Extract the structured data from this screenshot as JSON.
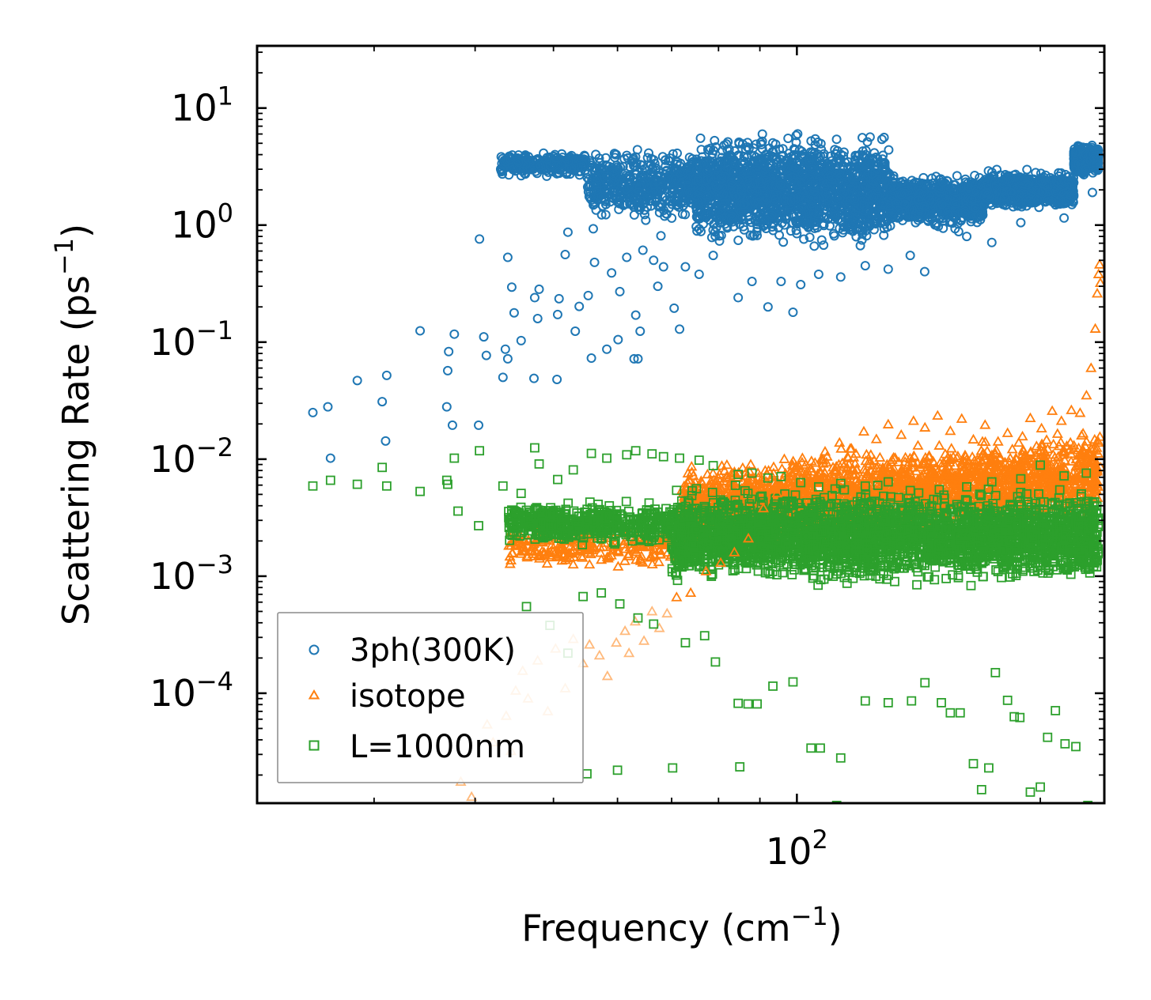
{
  "chart_data": {
    "type": "scatter",
    "xscale": "log",
    "yscale": "log",
    "xlabel": "Frequency (cm",
    "xlabel_sup": "−1",
    "xlabel_end": ")",
    "ylabel": "Scattering Rate (ps",
    "ylabel_sup": "−1",
    "ylabel_end": ")",
    "xlim": [
      21.5,
      240
    ],
    "ylim": [
      1.15e-05,
      34
    ],
    "x_ticks": [
      {
        "value": 100,
        "base": "10",
        "exp": "2"
      }
    ],
    "y_ticks": [
      {
        "value": 10,
        "base": "10",
        "exp": "1"
      },
      {
        "value": 1,
        "base": "10",
        "exp": "0"
      },
      {
        "value": 0.1,
        "base": "10",
        "exp": "−1"
      },
      {
        "value": 0.01,
        "base": "10",
        "exp": "−2"
      },
      {
        "value": 0.001,
        "base": "10",
        "exp": "−3"
      },
      {
        "value": 0.0001,
        "base": "10",
        "exp": "−4"
      }
    ],
    "legend_position": "lower-left",
    "series": [
      {
        "name": "3ph(300K)",
        "color": "#1f77b4",
        "marker": "circle",
        "points": [
          [
            25.2,
            0.025
          ],
          [
            26.3,
            0.028
          ],
          [
            26.5,
            0.0102
          ],
          [
            28.6,
            0.047
          ],
          [
            30.7,
            0.031
          ],
          [
            31.1,
            0.052
          ],
          [
            31.0,
            0.0143
          ],
          [
            34.2,
            0.125
          ],
          [
            36.9,
            0.028
          ],
          [
            37.0,
            0.057
          ],
          [
            37.1,
            0.083
          ],
          [
            37.7,
            0.117
          ],
          [
            37.5,
            0.0195
          ],
          [
            40.4,
            0.0195
          ],
          [
            40.5,
            0.76
          ],
          [
            41.0,
            0.111
          ],
          [
            41.3,
            0.077
          ],
          [
            43.3,
            0.05
          ],
          [
            43.6,
            0.087
          ],
          [
            43.9,
            0.072
          ],
          [
            43.9,
            0.53
          ],
          [
            44.4,
            0.295
          ],
          [
            44.7,
            0.178
          ],
          [
            45.6,
            0.103
          ],
          [
            47.3,
            0.049
          ],
          [
            47.4,
            0.24
          ],
          [
            47.8,
            0.159
          ],
          [
            48.0,
            0.283
          ],
          [
            50.5,
            0.048
          ],
          [
            50.6,
            0.172
          ],
          [
            50.8,
            0.235
          ],
          [
            51.7,
            0.56
          ],
          [
            52.1,
            0.87
          ],
          [
            53.2,
            0.124
          ],
          [
            53.8,
            0.202
          ],
          [
            55.2,
            0.25
          ],
          [
            55.7,
            0.073
          ],
          [
            56.0,
            0.93
          ],
          [
            56.2,
            0.48
          ],
          [
            58.2,
            0.087
          ],
          [
            59.0,
            0.39
          ],
          [
            60.1,
            0.105
          ],
          [
            60.4,
            0.27
          ],
          [
            61.6,
            0.53
          ],
          [
            62.9,
            0.072
          ],
          [
            63.6,
            0.072
          ],
          [
            63.2,
            0.17
          ],
          [
            64.0,
            0.124
          ],
          [
            64.5,
            0.61
          ],
          [
            66.5,
            0.5
          ],
          [
            67.3,
            0.3
          ],
          [
            67.9,
            0.81
          ],
          [
            68.4,
            0.44
          ],
          [
            70.5,
            0.195
          ],
          [
            71.6,
            0.129
          ],
          [
            72.8,
            0.44
          ],
          [
            75.7,
            0.38
          ],
          [
            78.8,
            0.55
          ],
          [
            84.6,
            0.24
          ],
          [
            88.0,
            0.33
          ],
          [
            92.1,
            0.2
          ],
          [
            95.6,
            0.33
          ],
          [
            98.9,
            0.18
          ],
          [
            101.1,
            0.31
          ],
          [
            106.4,
            0.38
          ],
          [
            113.3,
            0.36
          ],
          [
            121.5,
            0.45
          ],
          [
            129.7,
            0.42
          ],
          [
            138.1,
            0.55
          ],
          [
            143.9,
            0.4
          ],
          [
            158.5,
            0.88
          ],
          [
            162.2,
            0.8
          ],
          [
            174.2,
            0.71
          ],
          [
            189.2,
            1.05
          ],
          [
            214.0,
            1.15
          ],
          [
            232.0,
            1.9
          ]
        ]
      },
      {
        "name": "isotope",
        "color": "#ff7f0e",
        "marker": "triangle",
        "points": [
          [
            38.4,
            1.75e-05
          ],
          [
            39.6,
            1.3e-05
          ],
          [
            41.4,
            5.4e-05
          ],
          [
            42.1,
            3.8e-05
          ],
          [
            43.7,
            6.4e-05
          ],
          [
            44.3,
            3.2e-05
          ],
          [
            44.9,
            0.000105
          ],
          [
            45.8,
            0.000155
          ],
          [
            46.5,
            9e-05
          ],
          [
            47.8,
            0.00019
          ],
          [
            49.2,
            7e-05
          ],
          [
            50.3,
            0.00024
          ],
          [
            51.7,
            0.00011
          ],
          [
            52.9,
            0.00029
          ],
          [
            54.4,
            0.00018
          ],
          [
            55.4,
            0.00026
          ],
          [
            57.0,
            0.00021
          ],
          [
            58.3,
            0.00014
          ],
          [
            59.8,
            0.00027
          ],
          [
            61.3,
            0.00034
          ],
          [
            62.0,
            0.00022
          ],
          [
            63.1,
            0.00041
          ],
          [
            64.7,
            0.00028
          ],
          [
            66.2,
            0.0005
          ],
          [
            67.6,
            0.00036
          ],
          [
            69.1,
            0.00048
          ],
          [
            71.0,
            0.00066
          ],
          [
            73.9,
            0.00072
          ],
          [
            77.2,
            0.0011
          ],
          [
            80.5,
            0.0013
          ],
          [
            83.7,
            0.0016
          ],
          [
            87.1,
            0.0021
          ],
          [
            90.9,
            0.0038
          ],
          [
            94.5,
            0.0051
          ],
          [
            98.0,
            0.0064
          ],
          [
            101.8,
            0.0076
          ],
          [
            105.3,
            0.0093
          ],
          [
            109.0,
            0.0105
          ],
          [
            112.9,
            0.0138
          ],
          [
            116.8,
            0.0123
          ],
          [
            121.0,
            0.0172
          ],
          [
            125.4,
            0.0148
          ],
          [
            129.7,
            0.0198
          ],
          [
            134.6,
            0.0161
          ],
          [
            139.4,
            0.0212
          ],
          [
            144.0,
            0.0186
          ],
          [
            149.3,
            0.0235
          ],
          [
            154.8,
            0.0174
          ],
          [
            159.9,
            0.0221
          ],
          [
            165.3,
            0.0147
          ],
          [
            170.9,
            0.0196
          ],
          [
            176.4,
            0.0119
          ],
          [
            182.2,
            0.0167
          ],
          [
            188.1,
            0.0138
          ],
          [
            194.4,
            0.0224
          ],
          [
            200.7,
            0.0183
          ],
          [
            206.9,
            0.0258
          ],
          [
            212.4,
            0.0212
          ],
          [
            218.5,
            0.0262
          ],
          [
            224.0,
            0.0248
          ],
          [
            228.1,
            0.035
          ],
          [
            231.1,
            0.06
          ],
          [
            233.9,
            0.13
          ],
          [
            235.2,
            0.26
          ],
          [
            236.1,
            0.38
          ],
          [
            236.8,
            0.46
          ],
          [
            237.3,
            0.32
          ],
          [
            237.5,
            0.0085
          ],
          [
            237.0,
            0.0155
          ]
        ]
      },
      {
        "name": "L=1000nm",
        "color": "#2ca02c",
        "marker": "square",
        "points": [
          [
            25.2,
            0.0059
          ],
          [
            26.5,
            0.0066
          ],
          [
            28.6,
            0.0061
          ],
          [
            30.7,
            0.0085
          ],
          [
            31.1,
            0.0059
          ],
          [
            34.2,
            0.0053
          ],
          [
            36.9,
            0.0066
          ],
          [
            37.0,
            0.0061
          ],
          [
            37.7,
            0.0102
          ],
          [
            38.1,
            0.0036
          ],
          [
            40.5,
            0.0118
          ],
          [
            40.4,
            0.0027
          ],
          [
            43.3,
            0.0059
          ],
          [
            45.6,
            0.0051
          ],
          [
            47.4,
            0.0125
          ],
          [
            48.0,
            0.0091
          ],
          [
            50.6,
            0.0067
          ],
          [
            52.9,
            0.0081
          ],
          [
            55.7,
            0.0112
          ],
          [
            58.2,
            0.0102
          ],
          [
            61.6,
            0.0109
          ],
          [
            63.2,
            0.0118
          ],
          [
            66.2,
            0.0111
          ],
          [
            68.4,
            0.0105
          ],
          [
            71.6,
            0.0102
          ],
          [
            75.7,
            0.0098
          ],
          [
            78.8,
            0.0088
          ],
          [
            84.6,
            0.0074
          ],
          [
            88.0,
            0.0076
          ],
          [
            92.1,
            0.0069
          ],
          [
            95.6,
            0.0071
          ],
          [
            101.1,
            0.0063
          ],
          [
            106.4,
            0.0058
          ],
          [
            113.3,
            0.0062
          ],
          [
            121.5,
            0.0059
          ],
          [
            129.7,
            0.0064
          ],
          [
            138.1,
            0.0054
          ],
          [
            150.0,
            0.0055
          ],
          [
            162.2,
            0.0058
          ],
          [
            174.2,
            0.0064
          ],
          [
            189.2,
            0.0068
          ],
          [
            200.0,
            0.0089
          ],
          [
            214.0,
            0.0072
          ],
          [
            228.0,
            0.0076
          ],
          [
            46.3,
            0.00055
          ],
          [
            49.5,
            0.00038
          ],
          [
            52.1,
            0.00022
          ],
          [
            54.4,
            0.00067
          ],
          [
            57.3,
            0.00072
          ],
          [
            60.4,
            0.00058
          ],
          [
            63.6,
            0.00044
          ],
          [
            66.5,
            0.00039
          ],
          [
            72.8,
            0.00027
          ],
          [
            76.9,
            0.00031
          ],
          [
            79.3,
            0.000185
          ],
          [
            84.6,
            8.2e-05
          ],
          [
            87.0,
            8.1e-05
          ],
          [
            89.3,
            8.1e-05
          ],
          [
            93.4,
            0.000115
          ],
          [
            98.9,
            0.000125
          ],
          [
            104.1,
            3.4e-05
          ],
          [
            106.9,
            3.4e-05
          ],
          [
            113.3,
            2.8e-05
          ],
          [
            121.5,
            8.6e-05
          ],
          [
            129.7,
            8.3e-05
          ],
          [
            138.6,
            8.6e-05
          ],
          [
            144.0,
            0.000123
          ],
          [
            150.9,
            8.3e-05
          ],
          [
            154.8,
            6.8e-05
          ],
          [
            159.2,
            6.8e-05
          ],
          [
            165.3,
            2.5e-05
          ],
          [
            169.2,
            1.5e-05
          ],
          [
            172.7,
            2.3e-05
          ],
          [
            176.0,
            0.00015
          ],
          [
            182.2,
            8.7e-05
          ],
          [
            185.7,
            6.3e-05
          ],
          [
            188.7,
            6.2e-05
          ],
          [
            194.4,
            1.43e-05
          ],
          [
            200.0,
            1.58e-05
          ],
          [
            204.2,
            4.2e-05
          ],
          [
            208.8,
            7.1e-05
          ],
          [
            214.6,
            3.7e-05
          ],
          [
            221.3,
            3.5e-05
          ],
          [
            229.0,
            1.1e-05
          ],
          [
            112.0,
            1.1e-05
          ],
          [
            85.0,
            2.35e-05
          ],
          [
            70.2,
            2.3e-05
          ],
          [
            60.0,
            2.2e-05
          ],
          [
            55.0,
            2.05e-05
          ]
        ]
      }
    ]
  }
}
